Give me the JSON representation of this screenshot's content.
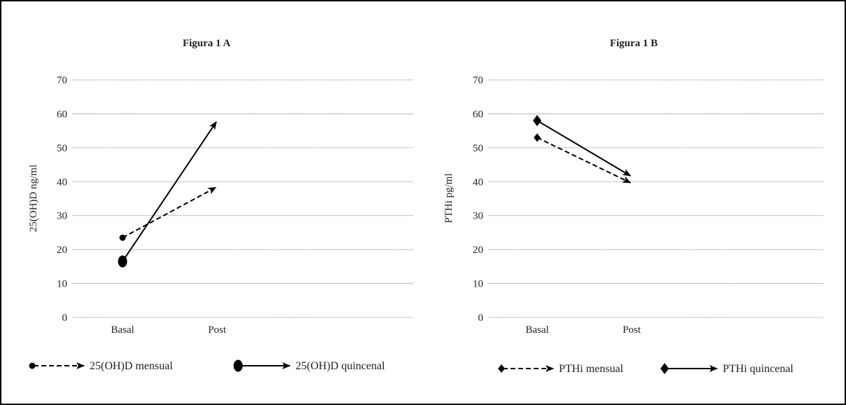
{
  "chart_data": [
    {
      "type": "line",
      "title": "Figura 1 A",
      "xlabel": "",
      "ylabel": "25(OH)D ng/ml",
      "categories": [
        "Basal",
        "Post"
      ],
      "ylim": [
        0,
        70
      ],
      "yticks": [
        0,
        10,
        20,
        30,
        40,
        50,
        60,
        70
      ],
      "grid": true,
      "legend_position": "bottom",
      "series": [
        {
          "name": "25(OH)D mensual",
          "values": [
            23.5,
            38.5
          ],
          "style": "dashed",
          "marker": "small-dot"
        },
        {
          "name": "25(OH)D quincenal",
          "values": [
            16.5,
            58
          ],
          "style": "solid",
          "marker": "large-oval"
        }
      ]
    },
    {
      "type": "line",
      "title": "Figura 1 B",
      "xlabel": "",
      "ylabel": "PTHi pg/ml",
      "categories": [
        "Basal",
        "Post"
      ],
      "ylim": [
        0,
        70
      ],
      "yticks": [
        0,
        10,
        20,
        30,
        40,
        50,
        60,
        70
      ],
      "grid": true,
      "legend_position": "bottom",
      "series": [
        {
          "name": "PTHi mensual",
          "values": [
            53,
            39.5
          ],
          "style": "dashed",
          "marker": "small-diamond"
        },
        {
          "name": "PTHi quincenal",
          "values": [
            58,
            41.5
          ],
          "style": "solid",
          "marker": "large-diamond"
        }
      ]
    }
  ],
  "colors": {
    "line": "#000000",
    "grid": "#555555",
    "background": "#ffffff",
    "border": "#000000"
  }
}
